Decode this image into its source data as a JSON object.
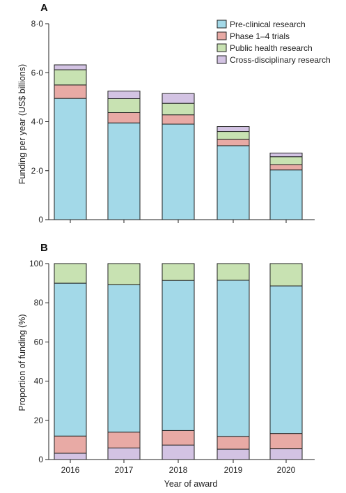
{
  "colors": {
    "pre_clinical": "#a3d9e8",
    "phase_trials": "#e8aaa5",
    "public_health": "#c8e2b2",
    "cross_disciplinary": "#d3c3e3"
  },
  "chart_data": [
    {
      "type": "bar",
      "stacked": true,
      "panel": "A",
      "categories": [
        "2016",
        "2017",
        "2018",
        "2019",
        "2020"
      ],
      "series": [
        {
          "name": "Pre-clinical research",
          "color_key": "pre_clinical",
          "values": [
            4.95,
            3.95,
            3.9,
            3.02,
            2.03
          ]
        },
        {
          "name": "Phase 1–4 trials",
          "color_key": "phase_trials",
          "values": [
            0.55,
            0.42,
            0.38,
            0.26,
            0.22
          ]
        },
        {
          "name": "Public health research",
          "color_key": "public_health",
          "values": [
            0.62,
            0.57,
            0.47,
            0.32,
            0.32
          ]
        },
        {
          "name": "Cross-disciplinary research",
          "color_key": "cross_disciplinary",
          "values": [
            0.2,
            0.31,
            0.4,
            0.2,
            0.15
          ]
        }
      ],
      "xlabel": "",
      "ylabel": "Funding per year (US$ billions)",
      "ylim": [
        0,
        8
      ],
      "yticks": [
        "0",
        "2·0",
        "4·0",
        "6·0",
        "8·0"
      ],
      "legend": "top-right",
      "grid": false
    },
    {
      "type": "bar",
      "stacked": true,
      "panel": "B",
      "categories": [
        "2016",
        "2017",
        "2018",
        "2019",
        "2020"
      ],
      "series": [
        {
          "name": "Cross-disciplinary research",
          "color_key": "cross_disciplinary",
          "values": [
            3.2,
            5.9,
            7.4,
            5.3,
            5.5
          ]
        },
        {
          "name": "Phase 1–4 trials",
          "color_key": "phase_trials",
          "values": [
            8.8,
            8.1,
            7.4,
            6.5,
            7.8
          ]
        },
        {
          "name": "Pre-clinical research",
          "color_key": "pre_clinical",
          "values": [
            78.0,
            75.2,
            76.6,
            79.7,
            75.3
          ]
        },
        {
          "name": "Public health research",
          "color_key": "public_health",
          "values": [
            10.0,
            10.8,
            8.6,
            8.5,
            11.4
          ]
        }
      ],
      "xlabel": "Year of award",
      "ylabel": "Proportion of funding (%)",
      "ylim": [
        0,
        100
      ],
      "yticks": [
        "0",
        "20",
        "40",
        "60",
        "80",
        "100"
      ],
      "grid": false
    }
  ]
}
